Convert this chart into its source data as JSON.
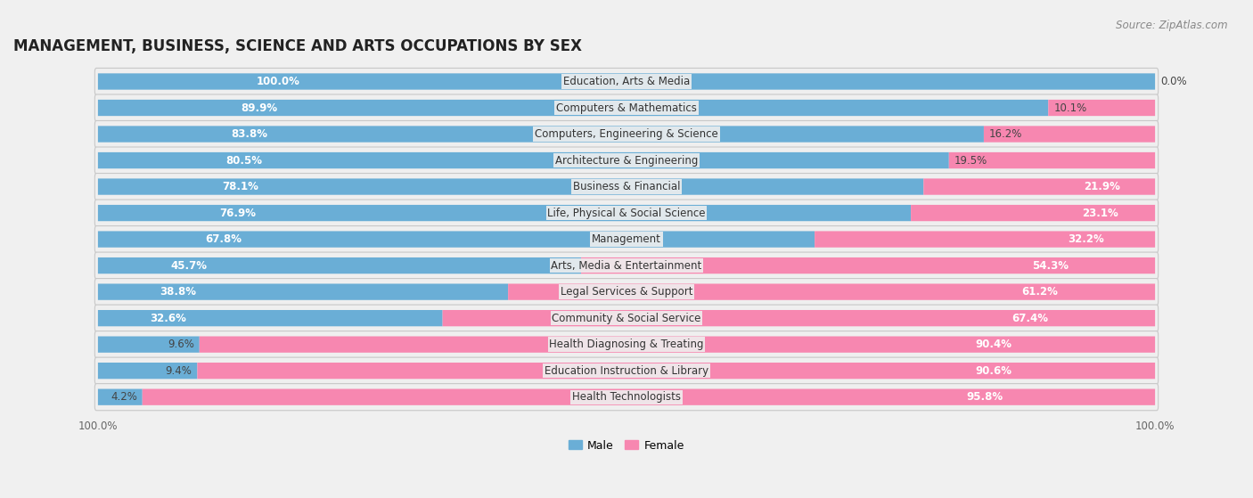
{
  "title": "MANAGEMENT, BUSINESS, SCIENCE AND ARTS OCCUPATIONS BY SEX",
  "source": "Source: ZipAtlas.com",
  "categories": [
    "Education, Arts & Media",
    "Computers & Mathematics",
    "Computers, Engineering & Science",
    "Architecture & Engineering",
    "Business & Financial",
    "Life, Physical & Social Science",
    "Management",
    "Arts, Media & Entertainment",
    "Legal Services & Support",
    "Community & Social Service",
    "Health Diagnosing & Treating",
    "Education Instruction & Library",
    "Health Technologists"
  ],
  "male_pct": [
    100.0,
    89.9,
    83.8,
    80.5,
    78.1,
    76.9,
    67.8,
    45.7,
    38.8,
    32.6,
    9.6,
    9.4,
    4.2
  ],
  "female_pct": [
    0.0,
    10.1,
    16.2,
    19.5,
    21.9,
    23.1,
    32.2,
    54.3,
    61.2,
    67.4,
    90.4,
    90.6,
    95.8
  ],
  "male_color": "#6aaed6",
  "female_color": "#f787b0",
  "male_label": "Male",
  "female_label": "Female",
  "bg_color": "#f0f0f0",
  "row_bg_color": "#e8e8e8",
  "bar_bg_color": "#e0e0e8",
  "title_fontsize": 12,
  "source_fontsize": 8.5,
  "label_fontsize": 8.5,
  "cat_fontsize": 8.5,
  "figsize": [
    14.06,
    5.59
  ],
  "dpi": 100
}
